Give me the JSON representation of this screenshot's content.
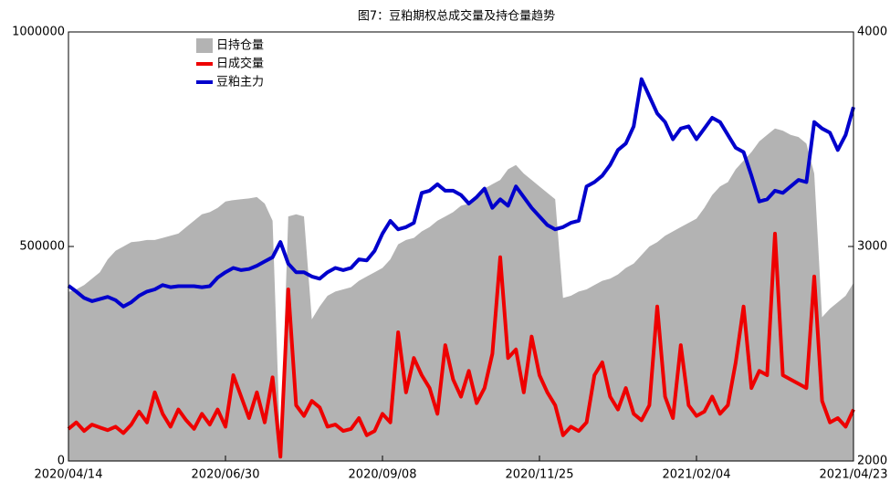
{
  "chart_data": {
    "type": "combo",
    "title": "图7：豆粕期权总成交量及持仓量趋势",
    "categories": [
      "2020/04/14",
      null,
      null,
      null,
      null,
      null,
      null,
      null,
      null,
      null,
      null,
      null,
      null,
      null,
      null,
      null,
      null,
      null,
      null,
      null,
      "2020/06/30",
      null,
      null,
      null,
      null,
      null,
      null,
      null,
      null,
      null,
      null,
      null,
      null,
      null,
      null,
      null,
      null,
      null,
      null,
      null,
      "2020/09/08",
      null,
      null,
      null,
      null,
      null,
      null,
      null,
      null,
      null,
      null,
      null,
      null,
      null,
      null,
      null,
      null,
      null,
      null,
      null,
      "2020/11/25",
      null,
      null,
      null,
      null,
      null,
      null,
      null,
      null,
      null,
      null,
      null,
      null,
      null,
      null,
      null,
      null,
      null,
      null,
      null,
      "2021/02/04",
      null,
      null,
      null,
      null,
      null,
      null,
      null,
      null,
      null,
      null,
      null,
      null,
      null,
      null,
      null,
      null,
      null,
      null,
      null,
      "2021/04/23"
    ],
    "ylim": [
      0,
      1000000
    ],
    "yticks": [
      0,
      500000,
      1000000
    ],
    "y2lim": [
      2000,
      4000
    ],
    "y2ticks": [
      2000,
      3000,
      4000
    ],
    "legend": "upper left",
    "series": [
      {
        "name": "日持仓量",
        "kind": "area",
        "color": "#b3b3b3",
        "values": [
          394000,
          400000,
          410000,
          425000,
          440000,
          470000,
          490000,
          500000,
          510000,
          512000,
          515000,
          515000,
          520000,
          525000,
          530000,
          545000,
          560000,
          575000,
          580000,
          590000,
          605000,
          608000,
          610000,
          612000,
          615000,
          600000,
          560000,
          20000,
          570000,
          575000,
          570000,
          330000,
          360000,
          385000,
          395000,
          400000,
          405000,
          420000,
          430000,
          440000,
          450000,
          470000,
          505000,
          515000,
          520000,
          535000,
          545000,
          560000,
          570000,
          580000,
          595000,
          600000,
          620000,
          635000,
          645000,
          655000,
          680000,
          690000,
          670000,
          655000,
          640000,
          625000,
          610000,
          380000,
          385000,
          395000,
          400000,
          410000,
          420000,
          425000,
          435000,
          450000,
          460000,
          480000,
          500000,
          510000,
          525000,
          535000,
          545000,
          555000,
          565000,
          590000,
          620000,
          640000,
          650000,
          680000,
          700000,
          720000,
          745000,
          760000,
          775000,
          770000,
          760000,
          755000,
          740000,
          670000,
          335000,
          355000,
          370000,
          385000,
          415000
        ]
      },
      {
        "name": "日成交量",
        "kind": "line",
        "color": "#ee0000",
        "values": [
          75000,
          90000,
          70000,
          85000,
          78000,
          72000,
          80000,
          65000,
          85000,
          115000,
          90000,
          160000,
          110000,
          80000,
          120000,
          95000,
          75000,
          110000,
          85000,
          120000,
          80000,
          200000,
          150000,
          100000,
          160000,
          90000,
          195000,
          10000,
          400000,
          130000,
          105000,
          140000,
          125000,
          80000,
          85000,
          70000,
          75000,
          100000,
          60000,
          70000,
          110000,
          90000,
          300000,
          160000,
          240000,
          200000,
          170000,
          110000,
          270000,
          190000,
          150000,
          210000,
          135000,
          170000,
          250000,
          475000,
          240000,
          260000,
          160000,
          290000,
          200000,
          160000,
          130000,
          60000,
          80000,
          70000,
          90000,
          200000,
          230000,
          150000,
          120000,
          170000,
          110000,
          95000,
          130000,
          360000,
          150000,
          100000,
          270000,
          130000,
          105000,
          115000,
          150000,
          110000,
          130000,
          230000,
          360000,
          170000,
          210000,
          200000,
          530000,
          200000,
          190000,
          180000,
          170000,
          430000,
          140000,
          90000,
          100000,
          80000,
          120000
        ]
      },
      {
        "name": "豆粕主力",
        "kind": "line",
        "axis": "y2",
        "color": "#0000cc",
        "values": [
          2817,
          2790,
          2760,
          2745,
          2755,
          2765,
          2750,
          2720,
          2740,
          2770,
          2790,
          2800,
          2820,
          2810,
          2815,
          2815,
          2815,
          2810,
          2815,
          2855,
          2880,
          2900,
          2890,
          2895,
          2910,
          2930,
          2950,
          3021,
          2920,
          2880,
          2880,
          2860,
          2850,
          2880,
          2900,
          2890,
          2900,
          2940,
          2935,
          2980,
          3060,
          3119,
          3080,
          3090,
          3110,
          3250,
          3260,
          3290,
          3260,
          3260,
          3240,
          3200,
          3230,
          3270,
          3180,
          3220,
          3190,
          3280,
          3230,
          3180,
          3140,
          3100,
          3080,
          3090,
          3110,
          3120,
          3280,
          3300,
          3330,
          3380,
          3450,
          3480,
          3560,
          3780,
          3700,
          3620,
          3580,
          3500,
          3550,
          3560,
          3500,
          3550,
          3600,
          3580,
          3520,
          3460,
          3440,
          3330,
          3210,
          3220,
          3260,
          3250,
          3280,
          3310,
          3300,
          3580,
          3550,
          3530,
          3450,
          3520,
          3650
        ]
      }
    ]
  }
}
